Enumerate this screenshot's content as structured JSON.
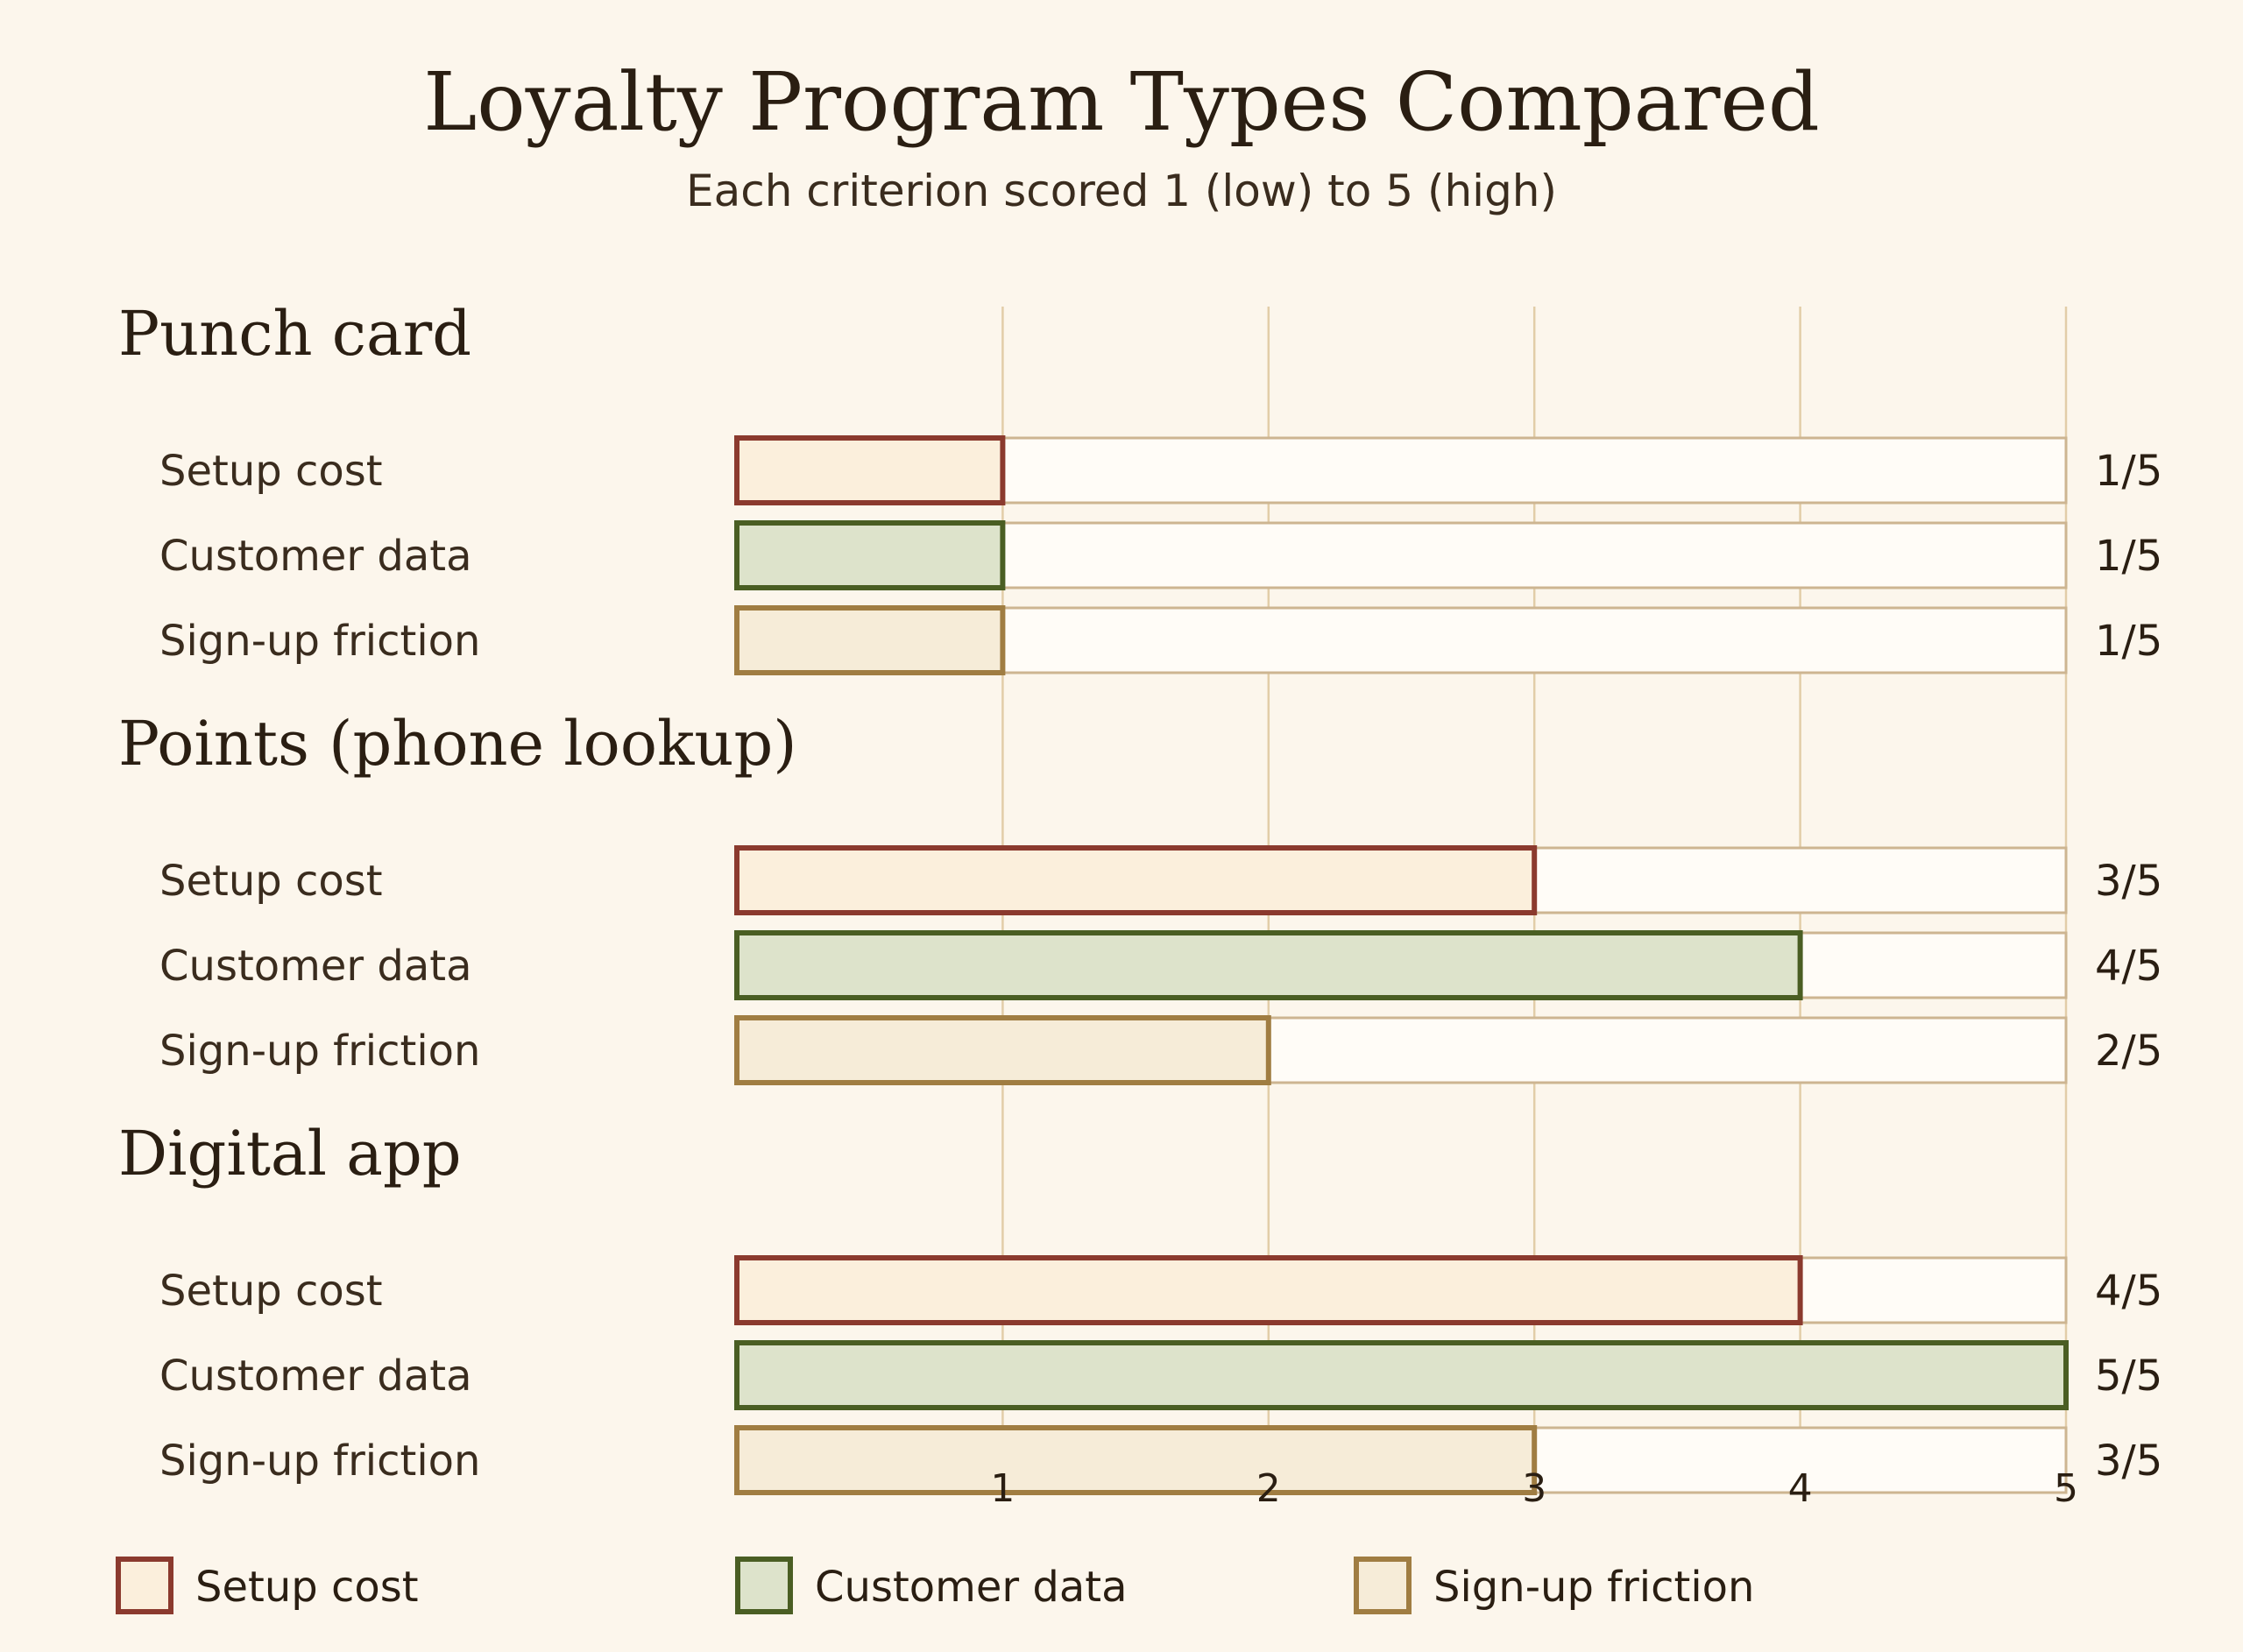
{
  "chart_data": {
    "type": "bar",
    "title": "Loyalty Program Types Compared",
    "subtitle": "Each criterion scored 1 (low) to 5 (high)",
    "xlim": [
      0,
      5
    ],
    "x_ticks": [
      "1",
      "2",
      "3",
      "4",
      "5"
    ],
    "grid": true,
    "legend_position": "bottom",
    "value_suffix": "/5",
    "criteria": [
      {
        "name": "Setup cost",
        "stroke": "#8b3a2e",
        "fill": "#fbefdc"
      },
      {
        "name": "Customer data",
        "stroke": "#4a5e23",
        "fill": "#dde3cb"
      },
      {
        "name": "Sign-up friction",
        "stroke": "#a07d42",
        "fill": "#f6ecd8"
      }
    ],
    "groups": [
      {
        "name": "Punch card",
        "values": [
          1,
          1,
          1
        ],
        "value_labels": [
          "1/5",
          "1/5",
          "1/5"
        ]
      },
      {
        "name": "Points (phone lookup)",
        "values": [
          3,
          4,
          2
        ],
        "value_labels": [
          "3/5",
          "4/5",
          "2/5"
        ]
      },
      {
        "name": "Digital app",
        "values": [
          4,
          5,
          3
        ],
        "value_labels": [
          "4/5",
          "5/5",
          "3/5"
        ]
      }
    ]
  }
}
